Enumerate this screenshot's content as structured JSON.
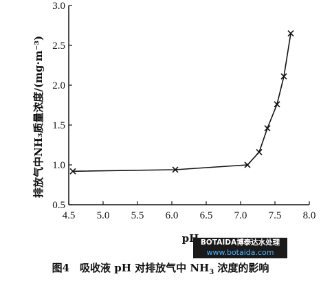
{
  "chart_data": {
    "type": "line",
    "title": "",
    "xlabel": "pH",
    "ylabel": "排放气中NH₃质量浓度/(mg·m⁻³)",
    "xlim": [
      4.5,
      8.0
    ],
    "ylim": [
      0.5,
      3.0
    ],
    "x_ticks": [
      "4.5",
      "5.0",
      "5.5",
      "6.0",
      "6.5",
      "7.0",
      "7.5",
      "8.0"
    ],
    "y_ticks": [
      "0.5",
      "1.0",
      "1.5",
      "2.0",
      "2.5",
      "3.0"
    ],
    "grid": false,
    "marker": "cross",
    "series": [
      {
        "x": [
          4.56,
          6.05,
          7.1,
          7.27,
          7.39,
          7.53,
          7.63,
          7.73
        ],
        "y": [
          0.92,
          0.94,
          1.0,
          1.16,
          1.46,
          1.76,
          2.11,
          2.65
        ]
      }
    ]
  },
  "caption": {
    "prefix": "图4　吸收液 pH 对排放气中 NH",
    "sub": "3",
    "suffix": " 浓度的影响"
  },
  "watermark": {
    "line1": "BOTAIDA博泰达水处理",
    "line2": "www.botaida.com"
  }
}
